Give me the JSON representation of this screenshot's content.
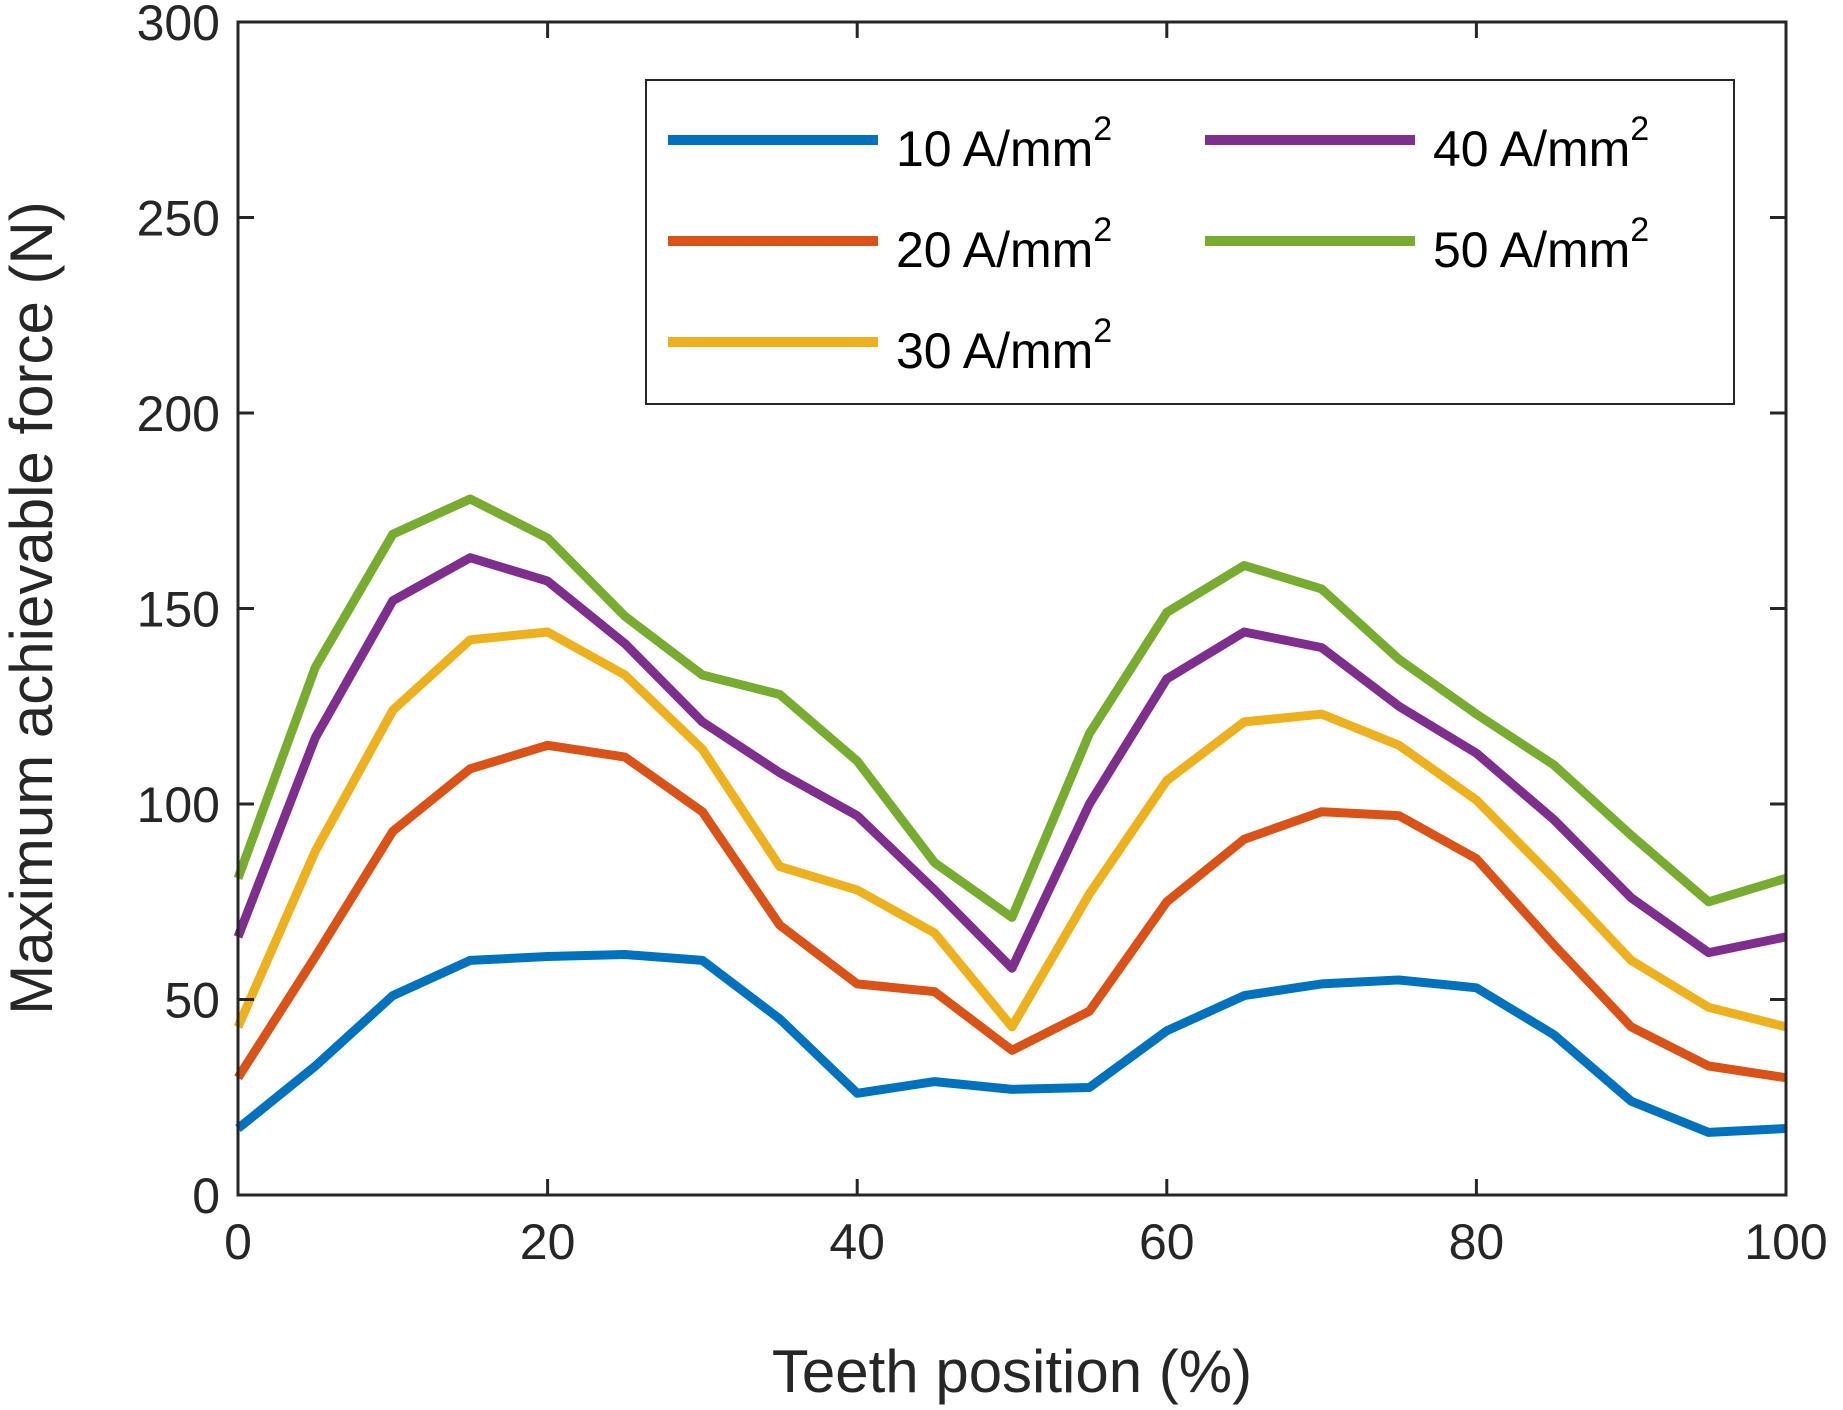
{
  "chart_data": {
    "type": "line",
    "title": "",
    "xlabel": "Teeth position (%)",
    "ylabel": "Maximum achievable force (N)",
    "xlim": [
      0,
      100
    ],
    "ylim": [
      0,
      300
    ],
    "xticks": [
      0,
      20,
      40,
      60,
      80,
      100
    ],
    "yticks": [
      0,
      50,
      100,
      150,
      200,
      250,
      300
    ],
    "grid": false,
    "legend_position": "top-right",
    "legend_columns": 2,
    "x": [
      0,
      5,
      10,
      15,
      20,
      25,
      30,
      35,
      40,
      45,
      50,
      55,
      60,
      65,
      70,
      75,
      80,
      85,
      90,
      95,
      100
    ],
    "series": [
      {
        "name": "10 A/mm",
        "superscript": "2",
        "color": "#0072BD",
        "values": [
          17,
          33,
          51,
          60,
          61,
          61.5,
          60,
          45,
          26,
          29,
          27,
          27.5,
          42,
          51,
          54,
          55,
          53,
          41,
          24,
          16,
          17
        ]
      },
      {
        "name": "20 A/mm",
        "superscript": "2",
        "color": "#D95319",
        "values": [
          30,
          61,
          93,
          109,
          115,
          112,
          98,
          69,
          54,
          52,
          37,
          47,
          75,
          91,
          98,
          97,
          86,
          64,
          43,
          33,
          30
        ]
      },
      {
        "name": "30 A/mm",
        "superscript": "2",
        "color": "#EDB120",
        "values": [
          43,
          88,
          124,
          142,
          144,
          133,
          114,
          84,
          78,
          67,
          43,
          77,
          106,
          121,
          123,
          115,
          101,
          81,
          60,
          48,
          43
        ]
      },
      {
        "name": "40 A/mm",
        "superscript": "2",
        "color": "#7E2F8E",
        "values": [
          66,
          117,
          152,
          163,
          157,
          141,
          121,
          108,
          97,
          78,
          58,
          100,
          132,
          144,
          140,
          125,
          113,
          96,
          76,
          62,
          66
        ]
      },
      {
        "name": "50 A/mm",
        "superscript": "2",
        "color": "#77AC30",
        "values": [
          81,
          135,
          169,
          178,
          168,
          148,
          133,
          128,
          111,
          85,
          71,
          118,
          149,
          161,
          155,
          137,
          123,
          110,
          92,
          75,
          81
        ]
      }
    ]
  }
}
